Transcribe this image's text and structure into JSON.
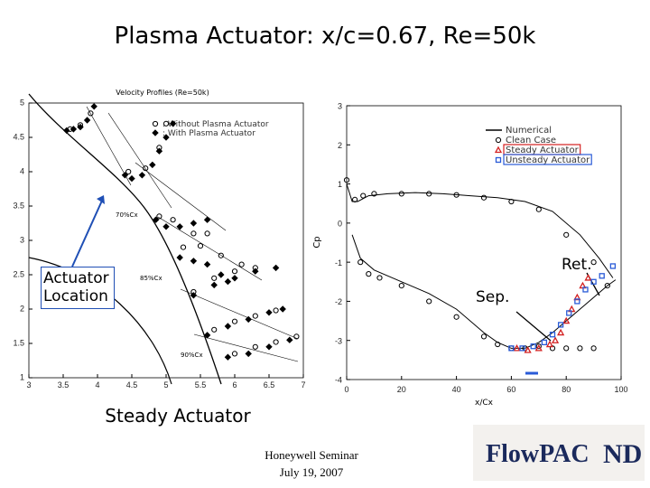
{
  "title": "Plasma Actuator: x/c=0.67, Re=50k",
  "caption": "Steady Actuator",
  "actuator_note": "Actuator Location",
  "footer": {
    "line1": "Honeywell Seminar",
    "line2": "July 19, 2007"
  },
  "logo": {
    "text": "FlowPAC",
    "monogram": "ND"
  },
  "chart_data": [
    {
      "type": "scatter",
      "title": "Velocity Profiles (Re=50k)",
      "xlim": [
        3,
        7
      ],
      "xticks": [
        3,
        3.5,
        4,
        4.5,
        5,
        5.5,
        6,
        6.5,
        7
      ],
      "ylim": [
        1,
        5
      ],
      "yticks": [
        1,
        1.5,
        2,
        2.5,
        3,
        3.5,
        4,
        4.5,
        5
      ],
      "annotations": [
        "70%Cx",
        "85%Cx",
        "90%Cx"
      ],
      "series": [
        {
          "name": ": Without Plasma Actuator",
          "color": "#000000",
          "marker": "circle",
          "x": [
            3.6,
            3.75,
            3.9,
            4.45,
            4.7,
            4.9,
            5.0,
            4.9,
            5.1,
            5.4,
            5.6,
            5.25,
            5.5,
            5.8,
            6.1,
            5.4,
            5.7,
            6.0,
            6.3,
            5.7,
            6.0,
            6.3,
            6.6,
            6.0,
            6.3,
            6.6,
            6.9
          ],
          "y": [
            4.62,
            4.68,
            4.85,
            4.0,
            4.05,
            4.35,
            4.7,
            3.35,
            3.3,
            3.1,
            3.1,
            2.9,
            2.92,
            2.78,
            2.65,
            2.25,
            2.45,
            2.55,
            2.6,
            1.7,
            1.82,
            1.9,
            1.98,
            1.35,
            1.45,
            1.52,
            1.6
          ]
        },
        {
          "name": ": With Plasma Actuator",
          "color": "#000000",
          "marker": "diamond",
          "x": [
            3.55,
            3.65,
            3.75,
            3.85,
            3.95,
            4.4,
            4.5,
            4.65,
            4.8,
            4.9,
            5.0,
            5.1,
            4.85,
            5.0,
            5.2,
            5.4,
            5.6,
            5.2,
            5.4,
            5.6,
            5.8,
            5.9,
            5.4,
            5.7,
            6.0,
            6.3,
            6.6,
            5.6,
            5.9,
            6.2,
            6.5,
            6.7,
            5.9,
            6.2,
            6.5,
            6.8
          ],
          "y": [
            4.6,
            4.62,
            4.65,
            4.75,
            4.95,
            3.95,
            3.9,
            3.95,
            4.1,
            4.3,
            4.5,
            4.7,
            3.3,
            3.2,
            3.2,
            3.25,
            3.3,
            2.75,
            2.7,
            2.65,
            2.5,
            2.4,
            2.2,
            2.35,
            2.45,
            2.55,
            2.6,
            1.62,
            1.75,
            1.85,
            1.95,
            2.0,
            1.3,
            1.35,
            1.45,
            1.55
          ]
        }
      ]
    },
    {
      "type": "line",
      "xlabel": "x/Cx",
      "ylabel": "Cp",
      "xlim": [
        0,
        100
      ],
      "xticks": [
        0,
        20,
        40,
        60,
        80,
        100
      ],
      "ylim": [
        -4,
        3
      ],
      "yticks": [
        -4,
        -3,
        -2,
        -1,
        0,
        1,
        2,
        3
      ],
      "annotations": [
        "Ret.",
        "Sep."
      ],
      "series": [
        {
          "name": "Numerical",
          "color": "#000000",
          "marker": "none",
          "line": true,
          "x": [
            0,
            2,
            4,
            8,
            15,
            25,
            35,
            45,
            55,
            65,
            75,
            85,
            92,
            97,
            null,
            2,
            5,
            10,
            20,
            30,
            40,
            50,
            55,
            60,
            65,
            70,
            75,
            80,
            85,
            90,
            95,
            98
          ],
          "y": [
            1.0,
            0.55,
            0.55,
            0.7,
            0.75,
            0.78,
            0.75,
            0.7,
            0.65,
            0.55,
            0.3,
            -0.3,
            -0.9,
            -1.4,
            null,
            -0.3,
            -0.9,
            -1.2,
            -1.5,
            -1.8,
            -2.2,
            -2.8,
            -3.05,
            -3.2,
            -3.2,
            -3.05,
            -2.8,
            -2.5,
            -2.2,
            -1.9,
            -1.6,
            -1.45
          ]
        },
        {
          "name": "Clean  Case",
          "color": "#000000",
          "marker": "circle",
          "x": [
            0,
            3,
            6,
            10,
            20,
            30,
            40,
            50,
            60,
            70,
            80,
            90,
            5,
            8,
            12,
            20,
            30,
            40,
            50,
            55,
            60,
            65,
            70,
            75,
            80,
            85,
            90,
            95
          ],
          "y": [
            1.1,
            0.6,
            0.7,
            0.75,
            0.75,
            0.75,
            0.72,
            0.65,
            0.55,
            0.35,
            -0.3,
            -1.0,
            -1.0,
            -1.3,
            -1.4,
            -1.6,
            -2.0,
            -2.4,
            -2.9,
            -3.1,
            -3.2,
            -3.2,
            -3.15,
            -3.2,
            -3.2,
            -3.2,
            -3.2,
            -1.6
          ]
        },
        {
          "name": "Steady  Actuator",
          "color": "#d42020",
          "marker": "triangle",
          "highlight": true,
          "x": [
            62,
            66,
            70,
            74,
            76,
            78,
            80,
            82,
            84,
            86,
            88
          ],
          "y": [
            -3.2,
            -3.25,
            -3.2,
            -3.1,
            -3.0,
            -2.8,
            -2.5,
            -2.2,
            -1.9,
            -1.6,
            -1.4
          ]
        },
        {
          "name": "Unsteady  Actuator",
          "color": "#2a5bd7",
          "marker": "square",
          "highlight": true,
          "x": [
            60,
            64,
            68,
            72,
            75,
            78,
            81,
            84,
            87,
            90,
            93,
            97
          ],
          "y": [
            -3.2,
            -3.2,
            -3.15,
            -3.05,
            -2.85,
            -2.6,
            -2.3,
            -2.0,
            -1.7,
            -1.5,
            -1.35,
            -1.1
          ]
        }
      ]
    }
  ]
}
